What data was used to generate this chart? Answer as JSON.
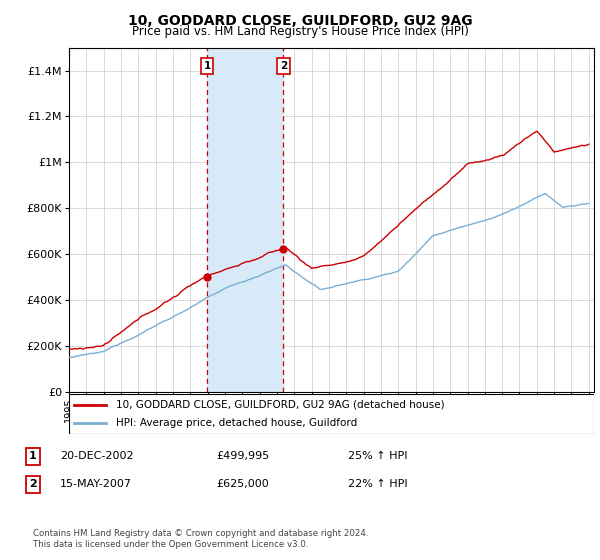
{
  "title": "10, GODDARD CLOSE, GUILDFORD, GU2 9AG",
  "subtitle": "Price paid vs. HM Land Registry's House Price Index (HPI)",
  "legend_entry1": "10, GODDARD CLOSE, GUILDFORD, GU2 9AG (detached house)",
  "legend_entry2": "HPI: Average price, detached house, Guildford",
  "annotation1_label": "1",
  "annotation1_date": "20-DEC-2002",
  "annotation1_price": "£499,995",
  "annotation1_hpi": "25% ↑ HPI",
  "annotation2_label": "2",
  "annotation2_date": "15-MAY-2007",
  "annotation2_price": "£625,000",
  "annotation2_hpi": "22% ↑ HPI",
  "footer": "Contains HM Land Registry data © Crown copyright and database right 2024.\nThis data is licensed under the Open Government Licence v3.0.",
  "sale1_year": 2002.97,
  "sale1_value": 499995,
  "sale2_year": 2007.37,
  "sale2_value": 625000,
  "property_color": "#cc0000",
  "hpi_color": "#7aafd4",
  "shaded_color": "#d8eaf8",
  "ylim": [
    0,
    1500000
  ],
  "yticks": [
    0,
    200000,
    400000,
    600000,
    800000,
    1000000,
    1200000,
    1400000
  ],
  "ytick_labels": [
    "£0",
    "£200K",
    "£400K",
    "£600K",
    "£800K",
    "£1M",
    "£1.2M",
    "£1.4M"
  ],
  "xmin": 1995,
  "xmax": 2025.3
}
